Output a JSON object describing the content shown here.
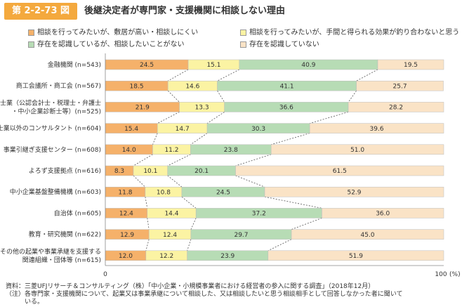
{
  "figure": {
    "number": "第 2-2-73 図",
    "title": "後継決定者が専門家・支援機関に相談しない理由"
  },
  "chart_data": {
    "type": "bar",
    "orientation": "horizontal",
    "stacked": true,
    "percent": true,
    "categories": [
      [
        "金融機関 (n=543)"
      ],
      [
        "商工会議所・商工会 (n=567)"
      ],
      [
        "士業（公認会計士・税理士・弁護士",
        "・中小企業診断士等）(n=525)"
      ],
      [
        "士業以外のコンサルタント (n=604)"
      ],
      [
        "事業引継ぎ支援センター (n=608)"
      ],
      [
        "よろず支援拠点 (n=616)"
      ],
      [
        "中小企業基盤整備機構 (n=603)"
      ],
      [
        "自治体 (n=605)"
      ],
      [
        "教育・研究機関 (n=622)"
      ],
      [
        "その他の起業や事業承継を支援する",
        "関連組織・団体等 (n=615)"
      ]
    ],
    "series": [
      {
        "name": "相談を行ってみたいが、敷居が高い・相談しにくい",
        "color": "#f5b16a",
        "values": [
          24.5,
          18.5,
          21.9,
          15.4,
          14.0,
          8.3,
          11.8,
          12.4,
          12.9,
          12.0
        ]
      },
      {
        "name": "相談を行ってみたいが、手間と得られる効果が釣り合わないと思う",
        "color": "#fbf3a3",
        "values": [
          15.1,
          14.6,
          13.3,
          14.7,
          11.2,
          10.1,
          10.8,
          14.4,
          12.4,
          12.2
        ]
      },
      {
        "name": "存在を認識しているが、相談したいことがない",
        "color": "#b7dcb5",
        "values": [
          40.9,
          41.1,
          36.6,
          30.3,
          23.8,
          20.1,
          24.5,
          37.2,
          29.7,
          23.9
        ]
      },
      {
        "name": "存在を認識していない",
        "color": "#fae3c6",
        "values": [
          19.5,
          25.7,
          28.2,
          39.6,
          51.0,
          61.5,
          52.9,
          36.0,
          45.0,
          51.9
        ]
      }
    ],
    "xlim": [
      0,
      100
    ],
    "x_ticks": [
      "0",
      "100"
    ],
    "x_unit": "(%)"
  },
  "footer": {
    "source": "資料：三菱UFJリサーチ＆コンサルティング（株）「中小企業・小規模事業者における経営者の参入に関する調査」（2018年12月）",
    "note_line1": "（注）各専門家・支援機関について、起業又は事業承継について相談した、又は相談したいと思う相談相手として回答しなかった者に聞いて",
    "note_line2": "いる。"
  }
}
